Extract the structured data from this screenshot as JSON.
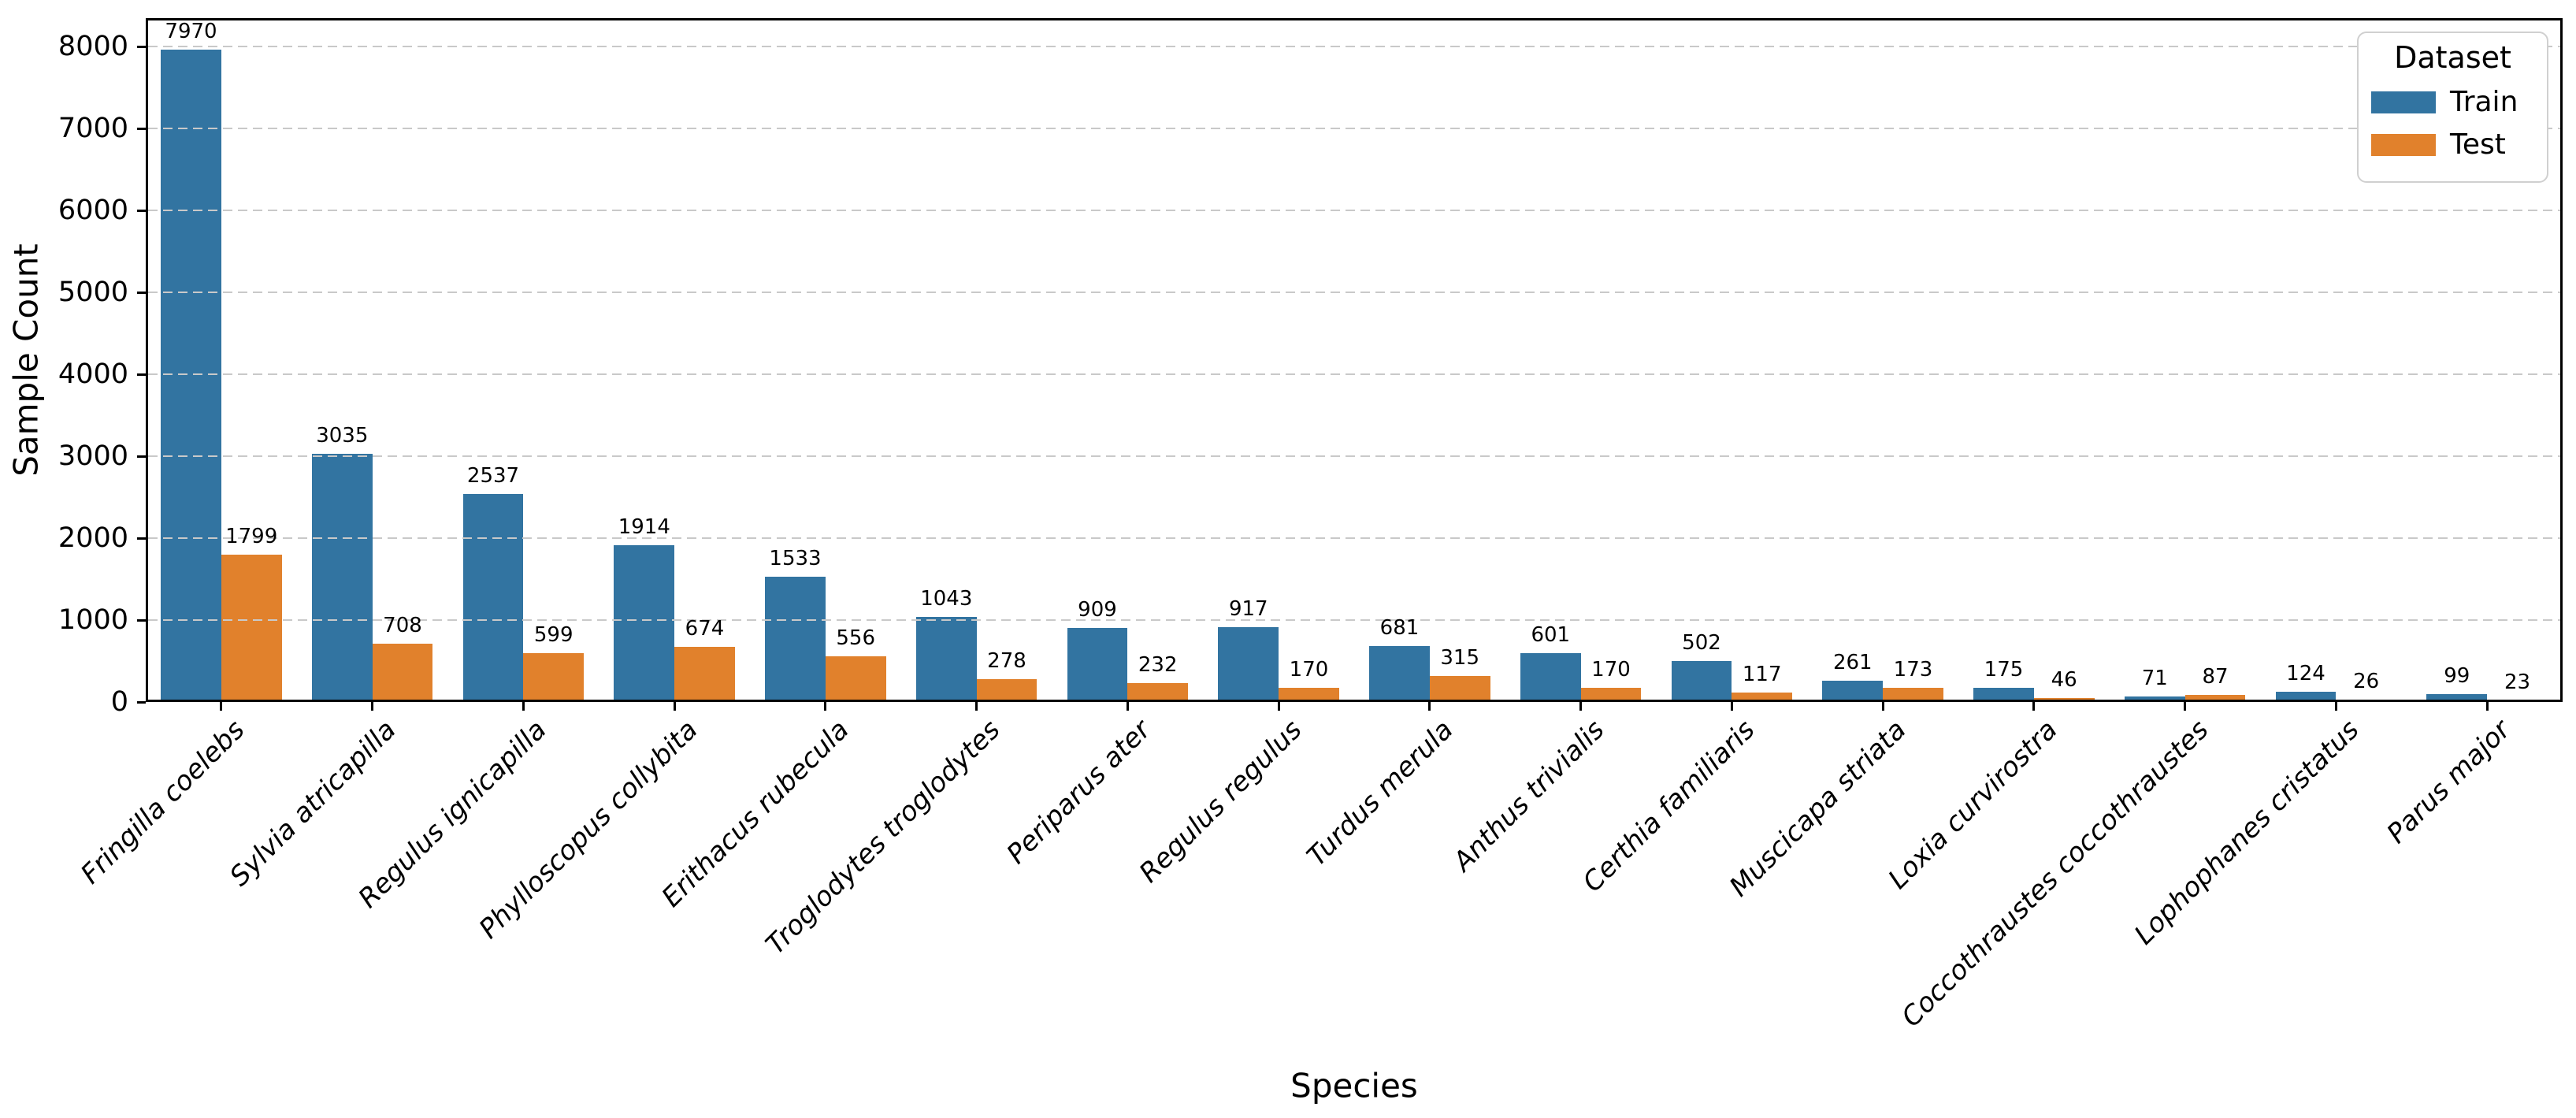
{
  "chart_data": {
    "type": "bar",
    "title": "",
    "xlabel": "Species",
    "ylabel": "Sample Count",
    "categories": [
      "Fringilla coelebs",
      "Sylvia atricapilla",
      "Regulus ignicapilla",
      "Phylloscopus collybita",
      "Erithacus rubecula",
      "Troglodytes troglodytes",
      "Periparus ater",
      "Regulus regulus",
      "Turdus merula",
      "Anthus trivialis",
      "Certhia familiaris",
      "Muscicapa striata",
      "Loxia curvirostra",
      "Coccothraustes coccothraustes",
      "Lophophanes cristatus",
      "Parus major"
    ],
    "series": [
      {
        "name": "Train",
        "color": "#3274a1",
        "values": [
          7970,
          3035,
          2537,
          1914,
          1533,
          1043,
          909,
          917,
          681,
          601,
          502,
          261,
          175,
          71,
          124,
          99
        ]
      },
      {
        "name": "Test",
        "color": "#e1812c",
        "values": [
          1799,
          708,
          599,
          674,
          556,
          278,
          232,
          170,
          315,
          170,
          117,
          173,
          46,
          87,
          26,
          23
        ]
      }
    ],
    "yticks": [
      0,
      1000,
      2000,
      3000,
      4000,
      5000,
      6000,
      7000,
      8000
    ],
    "ylim": [
      0,
      8350
    ],
    "bar_value_labels": true,
    "grid": "dashed-horizontal",
    "xtick_style": "italic-rotated-45",
    "legend": {
      "title": "Dataset",
      "position": "upper-right",
      "entries": [
        {
          "label": "Train",
          "color": "#3274a1"
        },
        {
          "label": "Test",
          "color": "#e1812c"
        }
      ]
    },
    "colors": {
      "grid": "#c9c9c9",
      "axis": "#000000",
      "text": "#000000",
      "legend_border": "#d0d0d0",
      "background": "#ffffff"
    }
  }
}
